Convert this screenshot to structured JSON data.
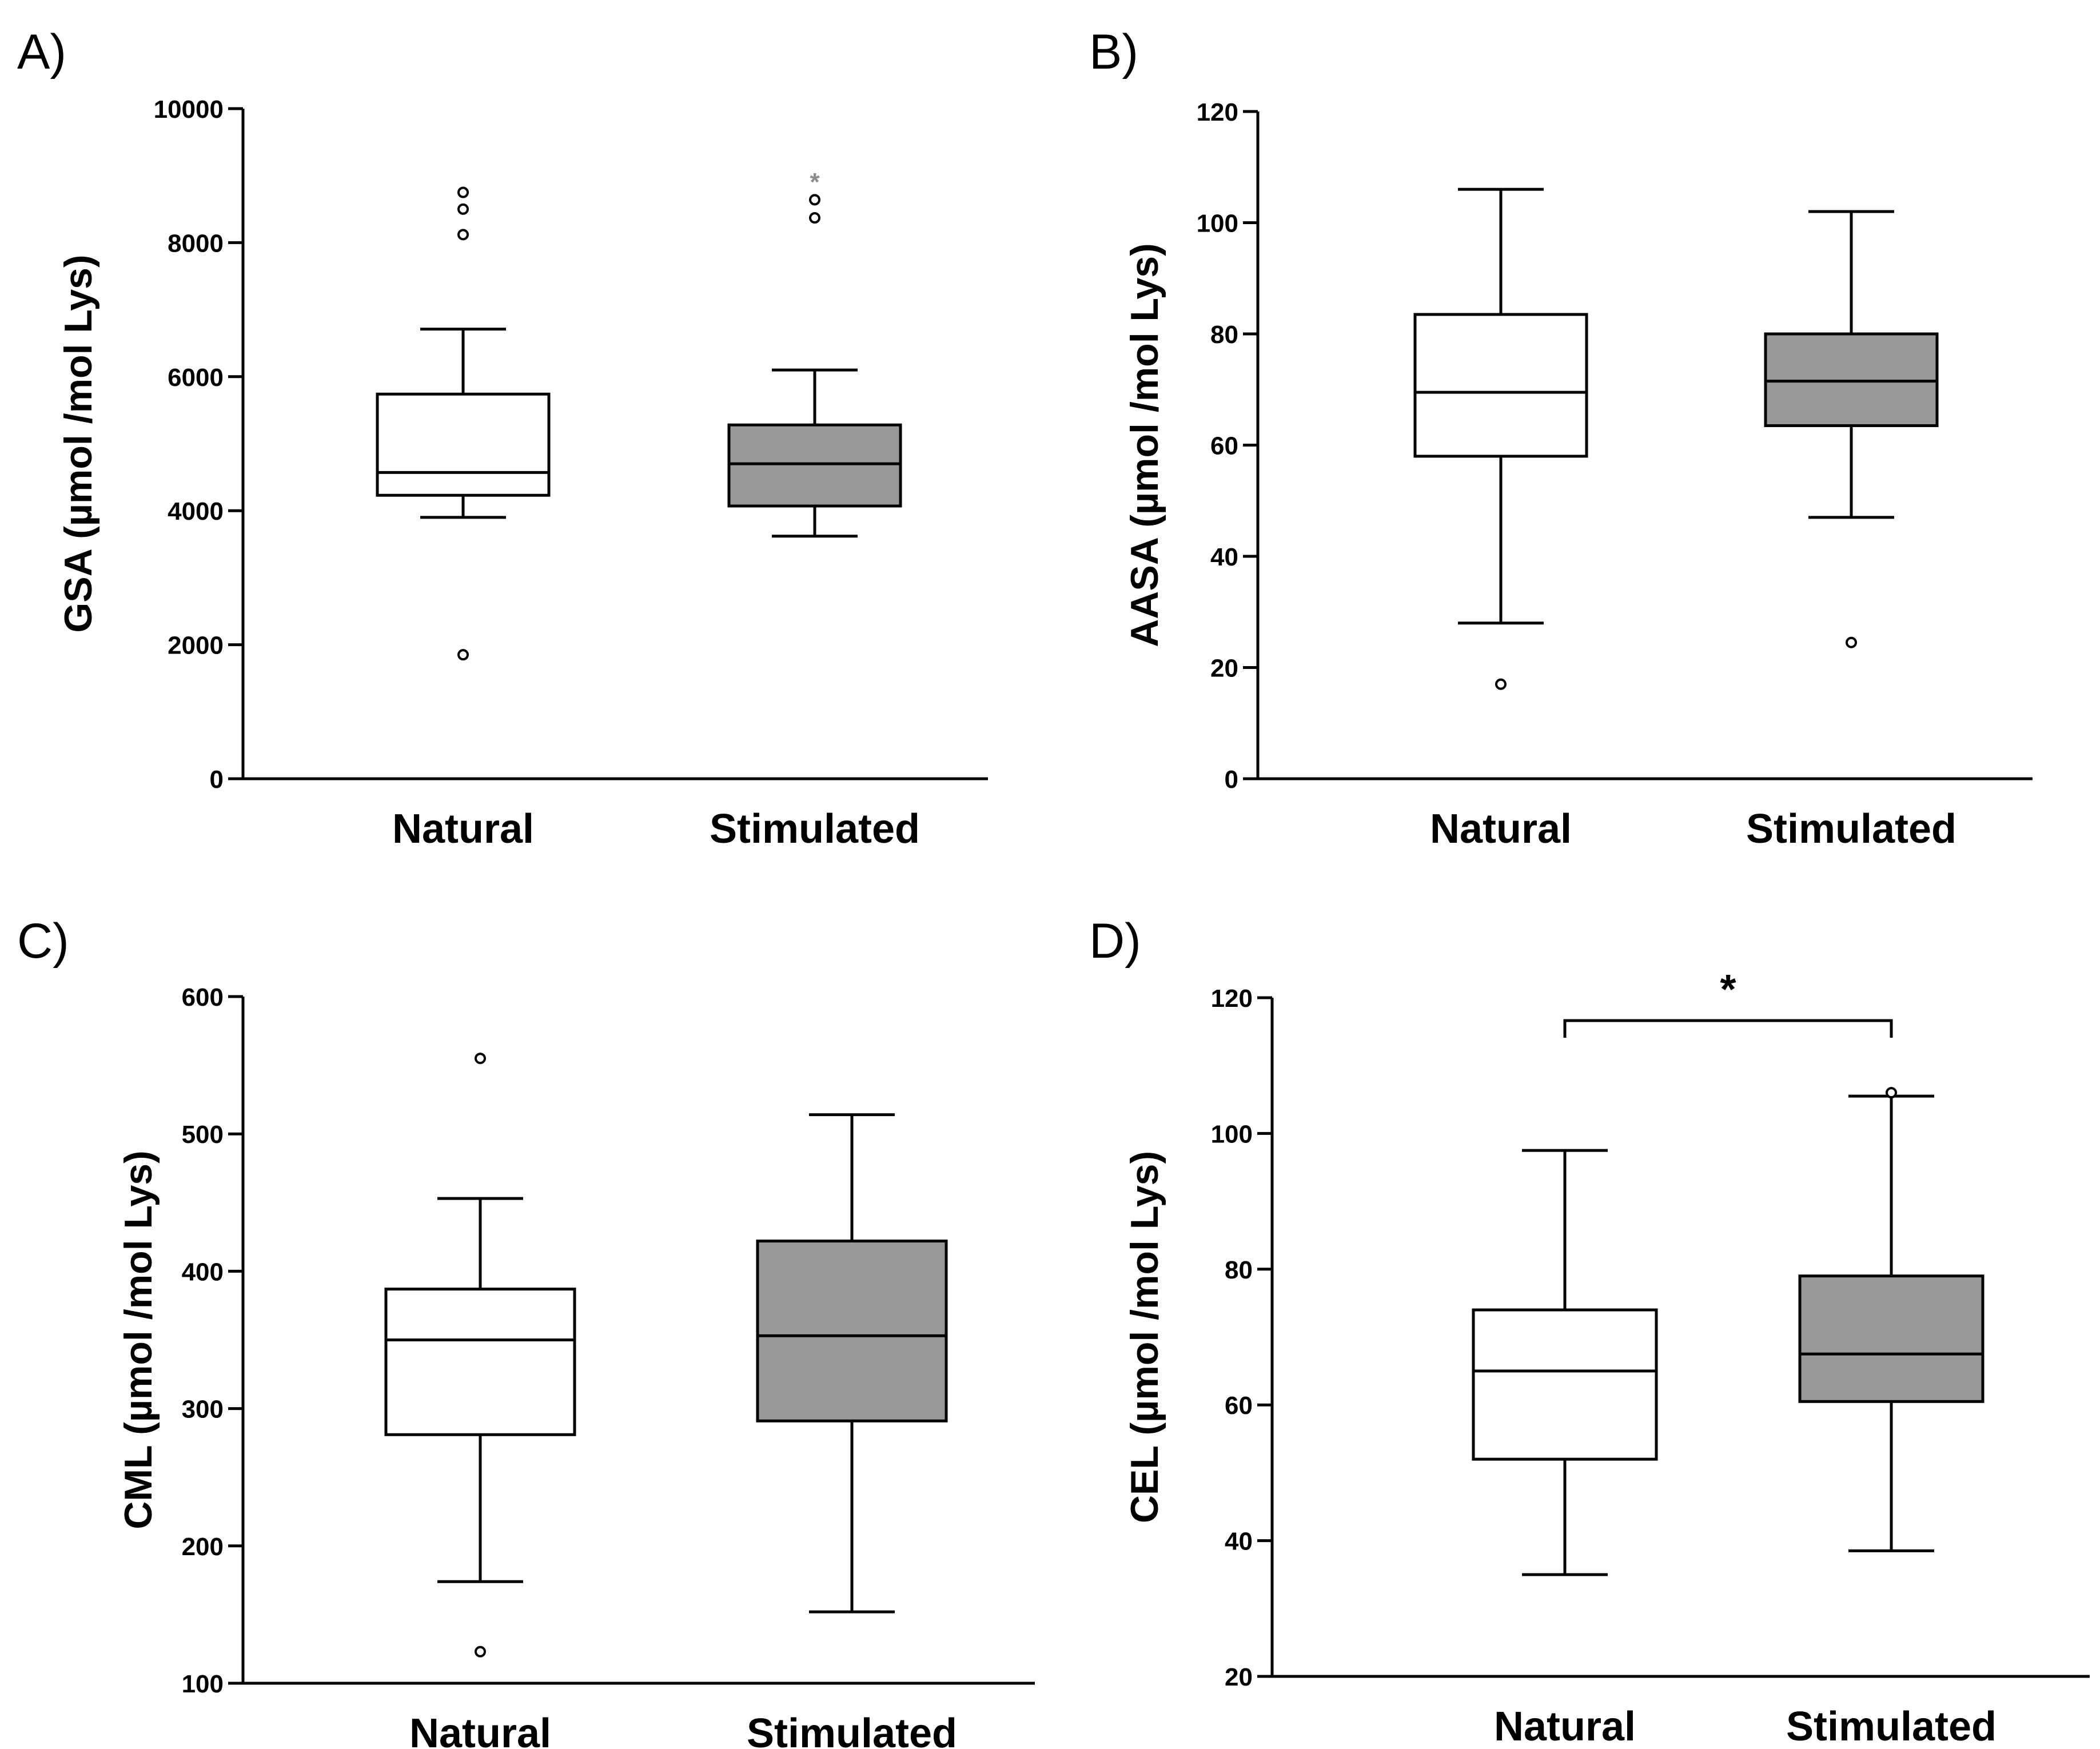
{
  "colors": {
    "stimulated_fill": "#999999",
    "natural_fill": "#ffffff",
    "extreme_marker": "#8c8c8c"
  },
  "chart_data": [
    {
      "type": "box",
      "panel_label": "A)",
      "ylabel": "GSA (µmol /mol Lys)",
      "ylim": [
        0,
        10000
      ],
      "yticks": [
        0,
        2000,
        4000,
        6000,
        8000,
        10000
      ],
      "categories": [
        "Natural",
        "Stimulated"
      ],
      "boxes": [
        {
          "category": "Natural",
          "whisker_low": 3900,
          "q1": 4230,
          "median": 4570,
          "q3": 5740,
          "whisker_high": 6710,
          "outliers": [
            1850,
            8120,
            8500,
            8750
          ],
          "extremes": []
        },
        {
          "category": "Stimulated",
          "whisker_low": 3620,
          "q1": 4070,
          "median": 4700,
          "q3": 5280,
          "whisker_high": 6100,
          "outliers": [
            8370,
            8640
          ],
          "extremes": [
            8950
          ]
        }
      ]
    },
    {
      "type": "box",
      "panel_label": "B)",
      "ylabel": "AASA (µmol /mol Lys)",
      "ylim": [
        0,
        120
      ],
      "yticks": [
        0,
        20,
        40,
        60,
        80,
        100,
        120
      ],
      "categories": [
        "Natural",
        "Stimulated"
      ],
      "boxes": [
        {
          "category": "Natural",
          "whisker_low": 28,
          "q1": 58,
          "median": 69.5,
          "q3": 83.5,
          "whisker_high": 106,
          "outliers": [
            17
          ],
          "extremes": []
        },
        {
          "category": "Stimulated",
          "whisker_low": 47,
          "q1": 63.5,
          "median": 71.5,
          "q3": 80,
          "whisker_high": 102,
          "outliers": [
            24.5
          ],
          "extremes": []
        }
      ]
    },
    {
      "type": "box",
      "panel_label": "C)",
      "ylabel": "CML (µmol /mol Lys)",
      "ylim": [
        100,
        600
      ],
      "yticks": [
        100,
        200,
        300,
        400,
        500,
        600
      ],
      "categories": [
        "Natural",
        "Stimulated"
      ],
      "boxes": [
        {
          "category": "Natural",
          "whisker_low": 174,
          "q1": 281,
          "median": 350,
          "q3": 387,
          "whisker_high": 453,
          "outliers": [
            123,
            555
          ],
          "extremes": []
        },
        {
          "category": "Stimulated",
          "whisker_low": 152,
          "q1": 291,
          "median": 353,
          "q3": 422,
          "whisker_high": 514,
          "outliers": [],
          "extremes": []
        }
      ]
    },
    {
      "type": "box",
      "panel_label": "D)",
      "ylabel": "CEL (µmol /mol Lys)",
      "ylim": [
        20,
        120
      ],
      "yticks": [
        20,
        40,
        60,
        80,
        100,
        120
      ],
      "categories": [
        "Natural",
        "Stimulated"
      ],
      "boxes": [
        {
          "category": "Natural",
          "whisker_low": 35,
          "q1": 52,
          "median": 65,
          "q3": 74,
          "whisker_high": 97.5,
          "outliers": [],
          "extremes": []
        },
        {
          "category": "Stimulated",
          "whisker_low": 38.5,
          "q1": 60.5,
          "median": 67.5,
          "q3": 79,
          "whisker_high": 105.5,
          "outliers": [
            106
          ],
          "extremes": []
        }
      ],
      "significance": {
        "between": [
          "Natural",
          "Stimulated"
        ],
        "label": "*"
      }
    }
  ]
}
